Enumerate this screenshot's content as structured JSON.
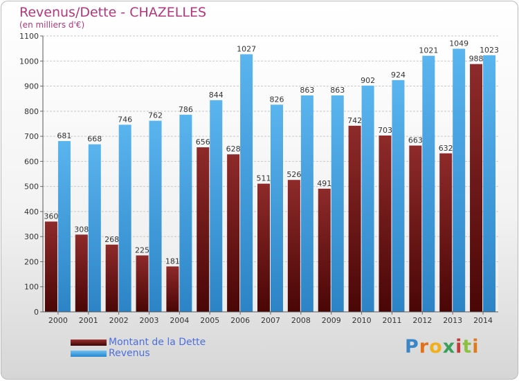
{
  "chart_data": {
    "type": "bar",
    "title": "Revenus/Dette - CHAZELLES",
    "subtitle": "(en milliers d'€)",
    "categories": [
      "2000",
      "2001",
      "2002",
      "2003",
      "2004",
      "2005",
      "2006",
      "2007",
      "2008",
      "2009",
      "2010",
      "2011",
      "2012",
      "2013",
      "2014"
    ],
    "series": [
      {
        "name": "Montant de la Dette",
        "color": "#7a1a1a",
        "values": [
          360,
          308,
          268,
          225,
          181,
          656,
          628,
          511,
          526,
          491,
          742,
          703,
          663,
          632,
          988
        ]
      },
      {
        "name": "Revenus",
        "color": "#3a9ee0",
        "values": [
          681,
          668,
          746,
          762,
          786,
          844,
          1027,
          826,
          863,
          863,
          902,
          924,
          1021,
          1049,
          1023
        ]
      }
    ],
    "ylim": [
      0,
      1100
    ],
    "yticks": [
      0,
      100,
      200,
      300,
      400,
      500,
      600,
      700,
      800,
      900,
      1000,
      1100
    ],
    "grid": true,
    "legend": "bottom-left"
  },
  "logo": {
    "letters": [
      "P",
      "r",
      "o",
      "x",
      "i",
      "t",
      "i"
    ],
    "colors": [
      "#3a86c8",
      "#e0701c",
      "#f0b01c",
      "#3aa05a",
      "#c83a3a",
      "#8cc040",
      "#e07a1c"
    ]
  }
}
